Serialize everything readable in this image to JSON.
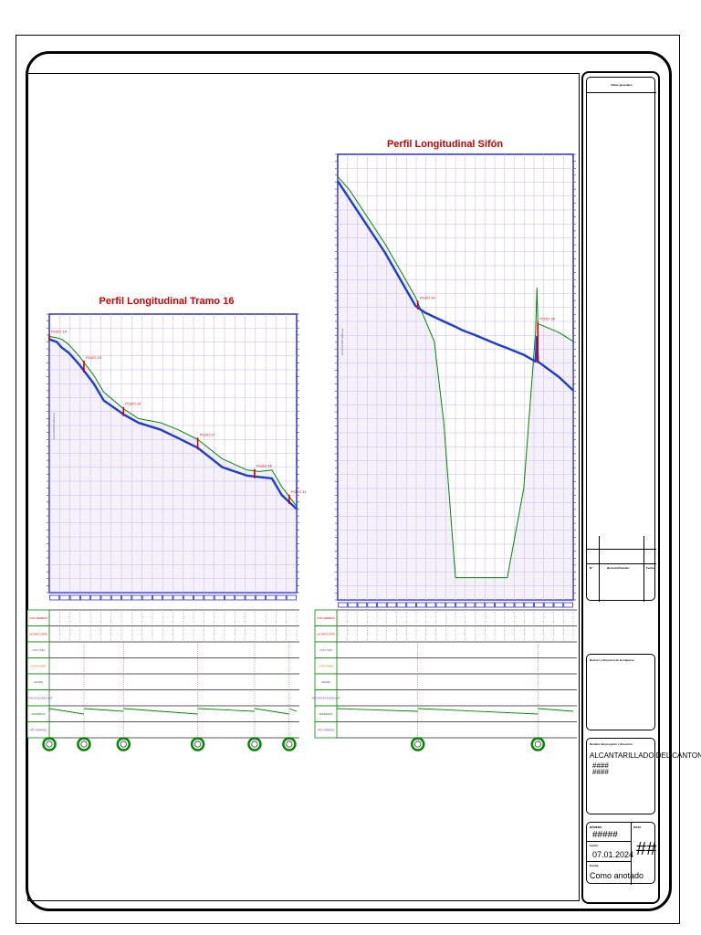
{
  "profiles": [
    {
      "title": "Perfil Longitudinal Tramo 16",
      "axis_label": "ELEVACION (Metros)",
      "nodes": [
        "POZO 14",
        "POZO 15",
        "POZO 16",
        "POZO 17",
        "POZO 18",
        "POZO 19"
      ],
      "row_labels": [
        "COTA TERRENO",
        "ALTURA CORTE",
        "COTA TAPA",
        "COTA FONDO",
        "ALTURA",
        "DISTANCIA ACUMULADA",
        "PENDIENTE",
        "TIPO TERRENO"
      ],
      "chart_data": {
        "type": "line",
        "title": "Perfil Longitudinal Tramo 16",
        "x": [
          0,
          3,
          5,
          8,
          12,
          18,
          22,
          30,
          36,
          45,
          52,
          60,
          70,
          80,
          85,
          90,
          94,
          100
        ],
        "series": [
          {
            "color": "#008800",
            "values": [
              92,
              91.5,
              91,
              89,
              85,
              78,
              72,
              66,
              62.5,
              61,
              58.5,
              55,
              48,
              44,
              43.5,
              44,
              38,
              31
            ]
          },
          {
            "color": "#1e3cd0",
            "values": [
              91,
              90,
              88,
              86,
              82,
              75,
              69,
              64,
              61,
              58.5,
              55.5,
              52,
              45,
              42,
              41.5,
              41,
              35,
              30
            ]
          }
        ]
      }
    },
    {
      "title": "Perfil Longitudinal Sifón",
      "axis_label": "ELEVACION (Metros)",
      "nodes": [
        "POZO 19",
        "POZO 20"
      ],
      "row_labels": [
        "COTA TERRENO",
        "ALTURA CORTE",
        "COTA TAPA",
        "COTA FONDO",
        "ALTURA",
        "DISTANCIA ACUMULADA",
        "PENDIENTE",
        "TIPO TERRENO"
      ],
      "chart_data": {
        "type": "line",
        "title": "Perfil Longitudinal Sifón",
        "x": [
          0,
          5,
          20,
          33,
          37,
          41,
          45,
          50,
          53,
          58,
          68,
          72,
          79,
          84,
          84.6,
          85,
          94,
          100
        ],
        "series": [
          {
            "color": "#008800",
            "values": [
              95,
              92,
              80,
              68,
              63,
              58,
              40,
              5,
              5,
              5,
              5,
              5,
              25,
              60,
              70,
              62,
              60,
              58
            ]
          },
          {
            "color": "#1e3cd0",
            "values": [
              94,
              90,
              78,
              66,
              64.5,
              63.5,
              62.5,
              61.3,
              60.5,
              59.5,
              57.3,
              56.5,
              55,
              53.5,
              59,
              53.5,
              50,
              47
            ]
          }
        ]
      }
    }
  ],
  "titleblock": {
    "notes_title": "Notas generales",
    "col_n": "N°",
    "col_rev": "Revisión/Cambio",
    "col_date": "Fecha",
    "company_label": "Revisor y dirección de la empresa",
    "project_label": "Nombre del proyecto y dirección",
    "project_name": "ALCANTARILLADO DEL CANTON CHA",
    "project_code": "########",
    "num_label": "NÚMERO",
    "num_value": "#####",
    "sheet_label": "HOJA",
    "date_label": "Fecha",
    "date_value": "07.01.2024",
    "scale_label": "Escala",
    "scale_value": "Como anotado",
    "sheet_value": "##"
  }
}
